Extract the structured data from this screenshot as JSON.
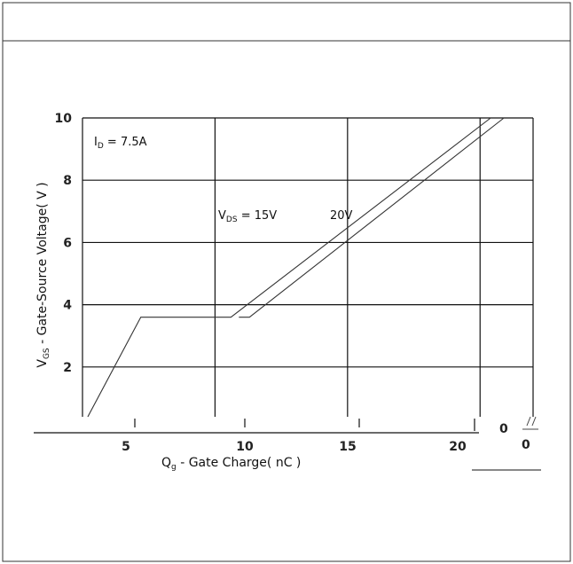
{
  "chart_data": {
    "type": "line",
    "xlabel_main": "Q",
    "xlabel_sub": "g",
    "xlabel_rest": " - Gate Charge( nC )",
    "ylabel_main": "V",
    "ylabel_sub": "GS",
    "ylabel_rest": " - Gate-Source Voltage( V )",
    "y_ticks": [
      "2",
      "4",
      "6",
      "8",
      "10"
    ],
    "x_ticks": [
      "5",
      "10",
      "15",
      "20"
    ],
    "extra_x_labels": [
      "0",
      "0"
    ],
    "ylim": [
      0.4,
      10
    ],
    "annotations": {
      "condition_main": "I",
      "condition_sub": "D",
      "condition_rest": " = 7.5A",
      "vds15_main": "V",
      "vds15_sub": "DS",
      "vds15_rest": "  = 15V",
      "vds20": "20V"
    },
    "series": [
      {
        "name": "15V",
        "x": [
          3.2,
          5.2,
          8.6,
          18.4
        ],
        "y": [
          0.4,
          3.6,
          3.6,
          10.0
        ]
      },
      {
        "name": "20V",
        "x": [
          9.3,
          18.9
        ],
        "y": [
          3.6,
          10.0
        ],
        "join_at_x": 8.9
      }
    ]
  }
}
